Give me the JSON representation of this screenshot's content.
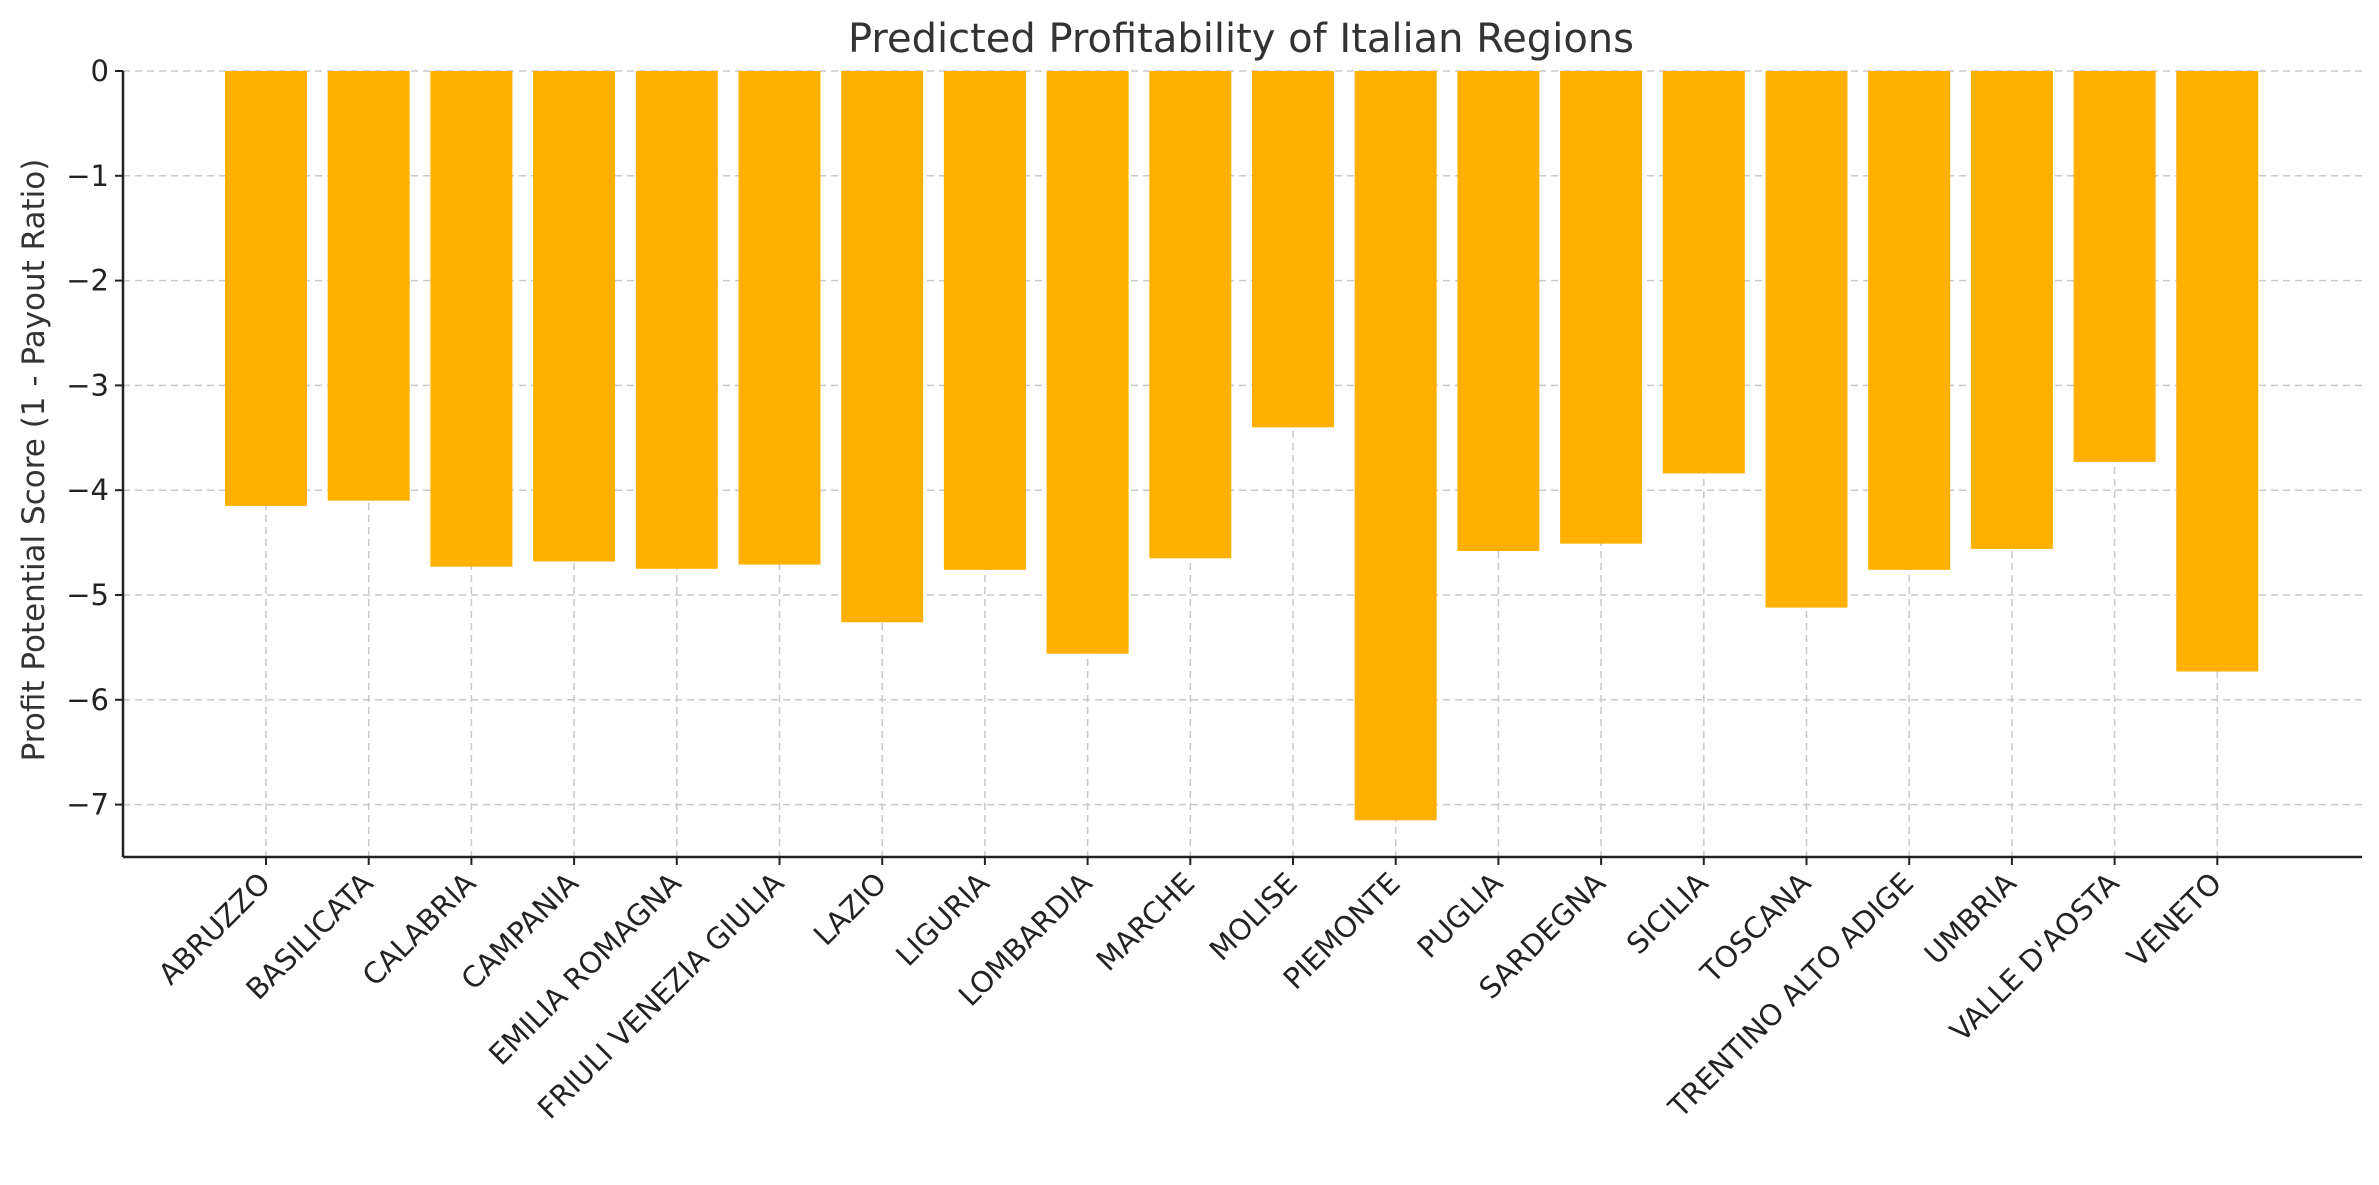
{
  "chart_data": {
    "type": "bar",
    "title": "Predicted Profitability of Italian Regions",
    "xlabel": "",
    "ylabel": "Profit Potential Score (1 - Payout Ratio)",
    "categories": [
      "ABRUZZO",
      "BASILICATA",
      "CALABRIA",
      "CAMPANIA",
      "EMILIA ROMAGNA",
      "FRIULI VENEZIA GIULIA",
      "LAZIO",
      "LIGURIA",
      "LOMBARDIA",
      "MARCHE",
      "MOLISE",
      "PIEMONTE",
      "PUGLIA",
      "SARDEGNA",
      "SICILIA",
      "TOSCANA",
      "TRENTINO ALTO ADIGE",
      "UMBRIA",
      "VALLE D'AOSTA",
      "VENETO"
    ],
    "values": [
      -4.15,
      -4.1,
      -4.73,
      -4.68,
      -4.75,
      -4.71,
      -5.26,
      -4.76,
      -5.56,
      -4.65,
      -3.4,
      -7.15,
      -4.58,
      -4.51,
      -3.84,
      -5.12,
      -4.76,
      -4.56,
      -3.73,
      -5.73
    ],
    "ylim": [
      -7.5,
      0
    ],
    "yticks": [
      0,
      -1,
      -2,
      -3,
      -4,
      -5,
      -6,
      -7
    ],
    "ytick_labels": [
      "0",
      "−1",
      "−2",
      "−3",
      "−4",
      "−5",
      "−6",
      "−7"
    ],
    "grid": true,
    "bar_color": "#FFB000"
  }
}
